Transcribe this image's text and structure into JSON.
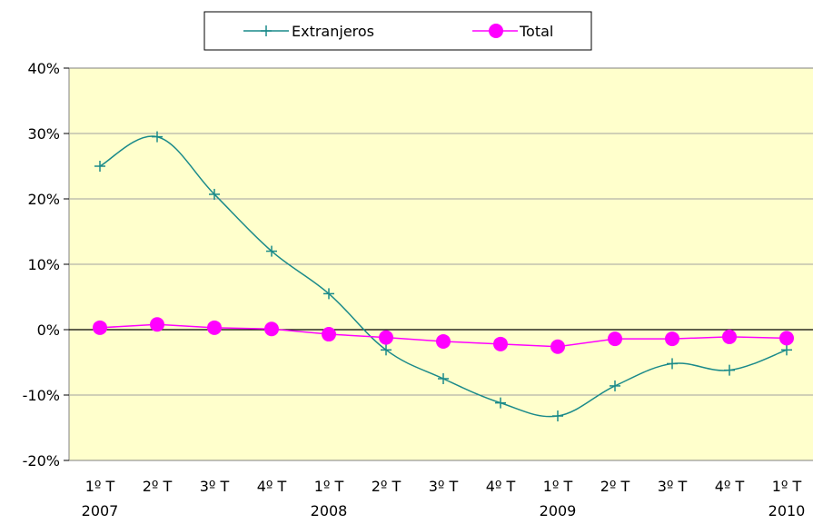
{
  "chart_data": {
    "type": "line",
    "categories": [
      "1º T",
      "2º T",
      "3º T",
      "4º T",
      "1º T",
      "2º T",
      "3º T",
      "4º T",
      "1º T",
      "2º T",
      "3º T",
      "4º T",
      "1º T"
    ],
    "year_labels": [
      {
        "index": 0,
        "label": "2007"
      },
      {
        "index": 4,
        "label": "2008"
      },
      {
        "index": 8,
        "label": "2009"
      },
      {
        "index": 12,
        "label": "2010"
      }
    ],
    "series": [
      {
        "name": "Extranjeros",
        "marker": "plus",
        "color": "#1a8a8a",
        "values": [
          25.0,
          29.5,
          20.7,
          12.0,
          5.5,
          -3.1,
          -7.5,
          -11.2,
          -13.2,
          -8.6,
          -5.2,
          -6.2,
          -3.1
        ]
      },
      {
        "name": "Total",
        "marker": "circle",
        "color": "#ff00ff",
        "values": [
          0.3,
          0.8,
          0.3,
          0.1,
          -0.7,
          -1.2,
          -1.8,
          -2.2,
          -2.6,
          -1.4,
          -1.4,
          -1.1,
          -1.3
        ]
      }
    ],
    "y_ticks": [
      "40%",
      "30%",
      "20%",
      "10%",
      "0%",
      "-10%",
      "-20%"
    ],
    "ylim": [
      -20,
      40
    ],
    "grid": true,
    "legend_position": "top"
  },
  "colors": {
    "plot_background": "#ffffcc",
    "gridline": "#a0a0a0",
    "zero_line": "#000000"
  }
}
